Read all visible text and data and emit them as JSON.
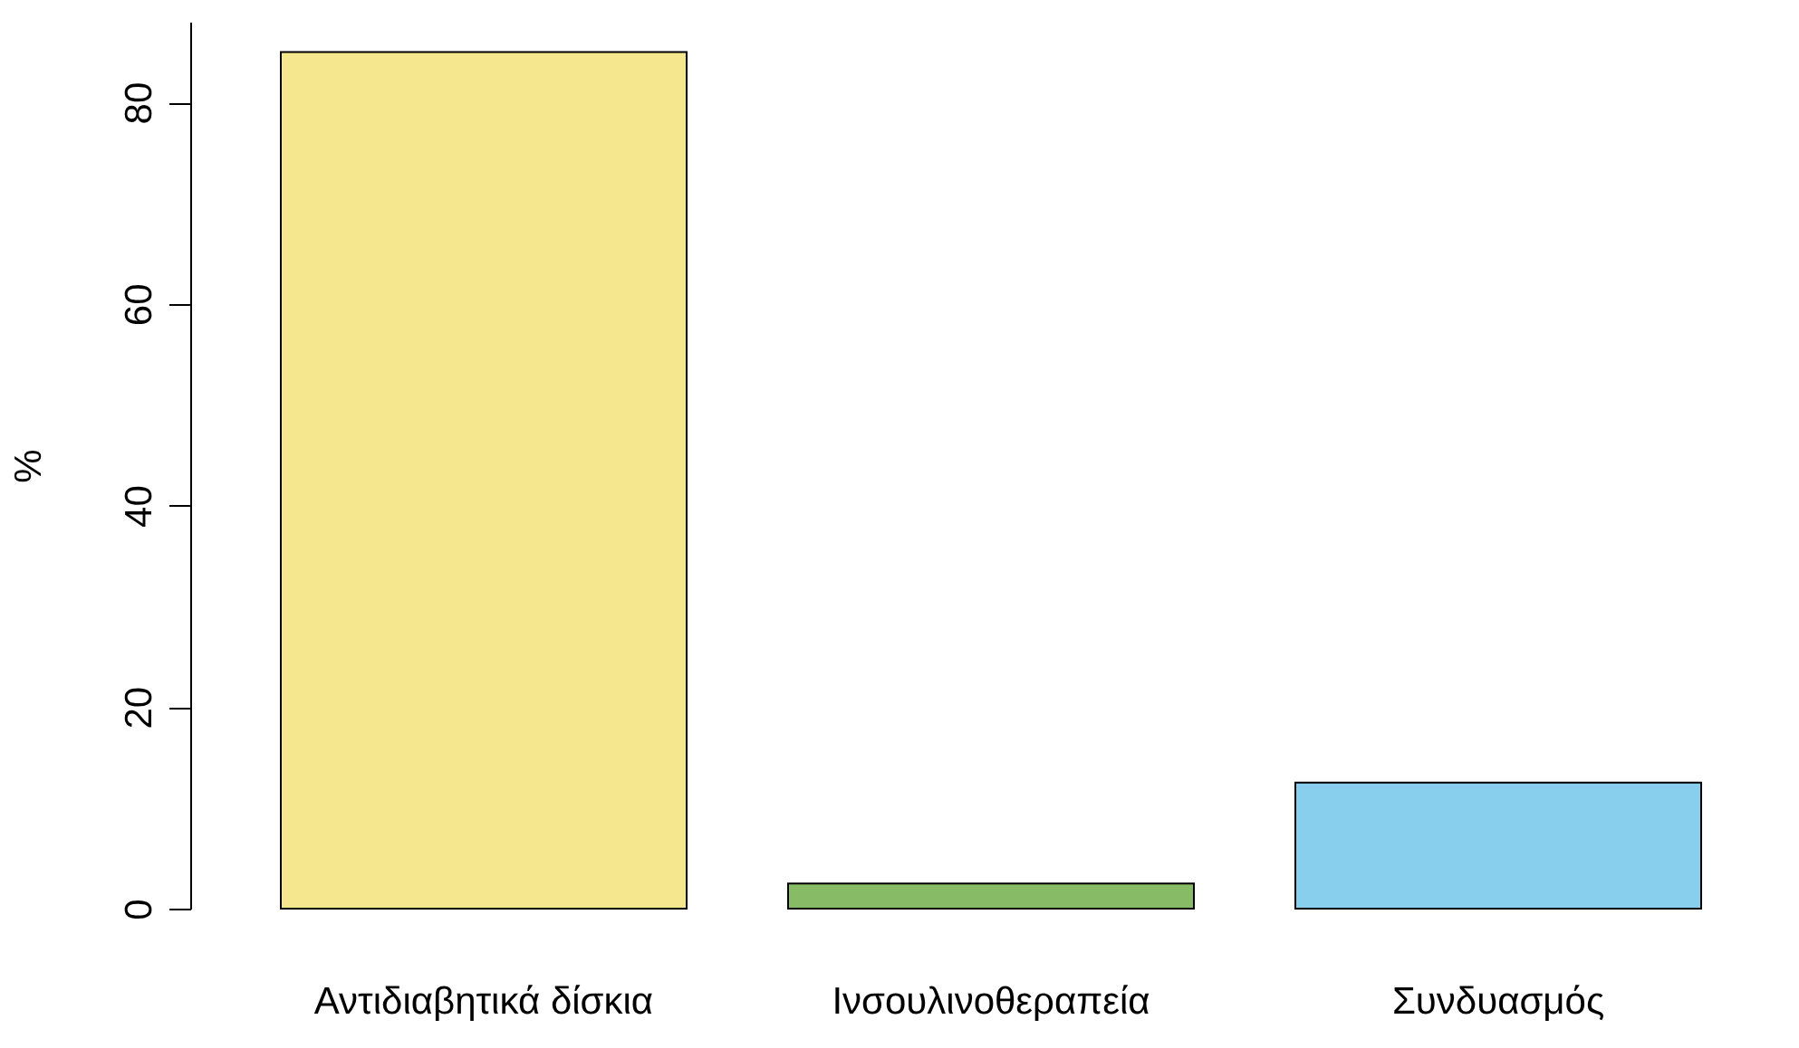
{
  "chart_data": {
    "type": "bar",
    "ylabel": "%",
    "categories": [
      "Αντιδιαβητικά δίσκια",
      "Ινσουλινοθεραπεία",
      "Συνδυασμός"
    ],
    "values": [
      85,
      2.5,
      12.5
    ],
    "colors": [
      "#f5e78e",
      "#88bb66",
      "#88cfee"
    ],
    "ylim": [
      0,
      88
    ],
    "yticks": [
      0,
      20,
      40,
      60,
      80
    ],
    "grid": false
  }
}
